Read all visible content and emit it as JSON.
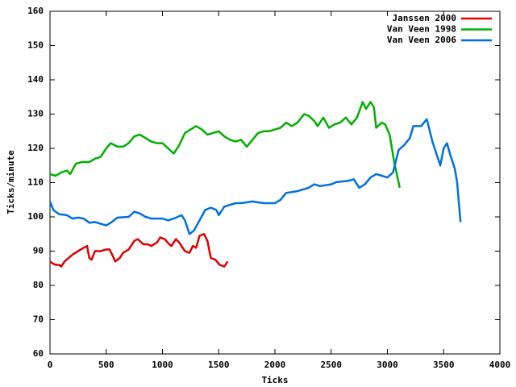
{
  "chart_data": {
    "type": "line",
    "xlabel": "Ticks",
    "ylabel": "Ticks/minute",
    "xlim": [
      0,
      4000
    ],
    "xticks": [
      0,
      500,
      1000,
      1500,
      2000,
      2500,
      3000,
      3500,
      4000
    ],
    "ylim": [
      60,
      160
    ],
    "yticks": [
      60,
      70,
      80,
      90,
      100,
      110,
      120,
      130,
      140,
      150,
      160
    ],
    "legend": "top-right",
    "series": [
      {
        "name": "Janssen 2000",
        "color": "#e00000",
        "x": [
          0,
          20,
          50,
          80,
          100,
          130,
          200,
          250,
          300,
          330,
          350,
          370,
          400,
          450,
          500,
          530,
          560,
          580,
          620,
          650,
          700,
          750,
          780,
          830,
          870,
          900,
          950,
          980,
          1020,
          1060,
          1080,
          1120,
          1150,
          1200,
          1240,
          1270,
          1300,
          1330,
          1370,
          1400,
          1430,
          1470,
          1510,
          1550,
          1580
        ],
        "values": [
          87,
          86.5,
          86,
          86,
          85.5,
          87,
          89,
          90,
          91,
          91.5,
          88,
          87.5,
          90,
          90,
          90.5,
          90.5,
          88.5,
          87,
          88,
          89.5,
          90.5,
          93,
          93.5,
          92,
          92,
          91.5,
          92.5,
          94,
          93.5,
          92,
          91.5,
          93.5,
          92.5,
          90,
          89.5,
          91.5,
          91,
          94.5,
          95,
          93,
          88,
          87.5,
          86,
          85.5,
          87
        ]
      },
      {
        "name": "Van Veen 1998",
        "color": "#00b000",
        "x": [
          0,
          50,
          100,
          150,
          180,
          230,
          280,
          350,
          400,
          450,
          500,
          540,
          600,
          650,
          700,
          750,
          800,
          850,
          900,
          950,
          1000,
          1050,
          1100,
          1150,
          1200,
          1250,
          1300,
          1350,
          1400,
          1450,
          1500,
          1550,
          1600,
          1650,
          1700,
          1750,
          1800,
          1850,
          1900,
          1950,
          2000,
          2050,
          2100,
          2150,
          2200,
          2260,
          2300,
          2350,
          2380,
          2430,
          2480,
          2530,
          2580,
          2630,
          2680,
          2730,
          2780,
          2810,
          2850,
          2880,
          2900,
          2950,
          2980,
          3020,
          3060,
          3110
        ],
        "values": [
          112.5,
          112,
          113,
          113.5,
          112.5,
          115.5,
          116,
          116,
          117,
          117.5,
          120,
          121.5,
          120.5,
          120.5,
          121.5,
          123.5,
          124,
          123,
          122,
          121.5,
          121.5,
          120,
          118.5,
          121,
          124.5,
          125.5,
          126.5,
          125.5,
          124,
          124.5,
          125,
          123.5,
          122.5,
          122,
          122.5,
          120.5,
          122.5,
          124.5,
          125,
          125,
          125.5,
          126,
          127.5,
          126.5,
          127.5,
          130,
          129.5,
          128,
          126.5,
          129,
          126,
          127,
          127.5,
          129,
          127,
          129,
          133.5,
          131.5,
          133.5,
          132,
          126,
          127.5,
          127,
          124,
          116,
          108.5
        ]
      },
      {
        "name": "Van Veen 2006",
        "color": "#0070e0",
        "x": [
          0,
          30,
          80,
          150,
          200,
          250,
          300,
          350,
          400,
          450,
          500,
          550,
          600,
          700,
          750,
          800,
          850,
          900,
          950,
          1000,
          1050,
          1100,
          1170,
          1200,
          1240,
          1280,
          1330,
          1380,
          1430,
          1480,
          1500,
          1550,
          1600,
          1650,
          1700,
          1800,
          1900,
          2000,
          2050,
          2100,
          2200,
          2300,
          2350,
          2400,
          2500,
          2550,
          2650,
          2700,
          2750,
          2800,
          2850,
          2900,
          2950,
          3000,
          3050,
          3100,
          3150,
          3200,
          3230,
          3270,
          3300,
          3350,
          3370,
          3400,
          3440,
          3470,
          3500,
          3530,
          3560,
          3600,
          3620,
          3650
        ],
        "values": [
          104.5,
          102,
          100.8,
          100.5,
          99.5,
          99.8,
          99.5,
          98.3,
          98.5,
          98,
          97.5,
          98.5,
          99.8,
          100,
          101.5,
          101,
          100,
          99.5,
          99.5,
          99.5,
          99,
          99.5,
          100.5,
          99,
          95,
          96,
          99,
          102,
          102.7,
          102,
          100.5,
          103,
          103.5,
          104,
          104,
          104.5,
          104,
          104,
          105,
          107,
          107.5,
          108.5,
          109.5,
          109,
          109.5,
          110.2,
          110.5,
          111,
          108.5,
          109.5,
          111.5,
          112.5,
          112,
          111.5,
          113,
          119.5,
          121,
          123,
          126.5,
          126.5,
          126.5,
          128.5,
          126,
          122,
          118,
          115,
          120,
          121.5,
          118,
          114,
          110,
          98.5
        ]
      }
    ]
  }
}
